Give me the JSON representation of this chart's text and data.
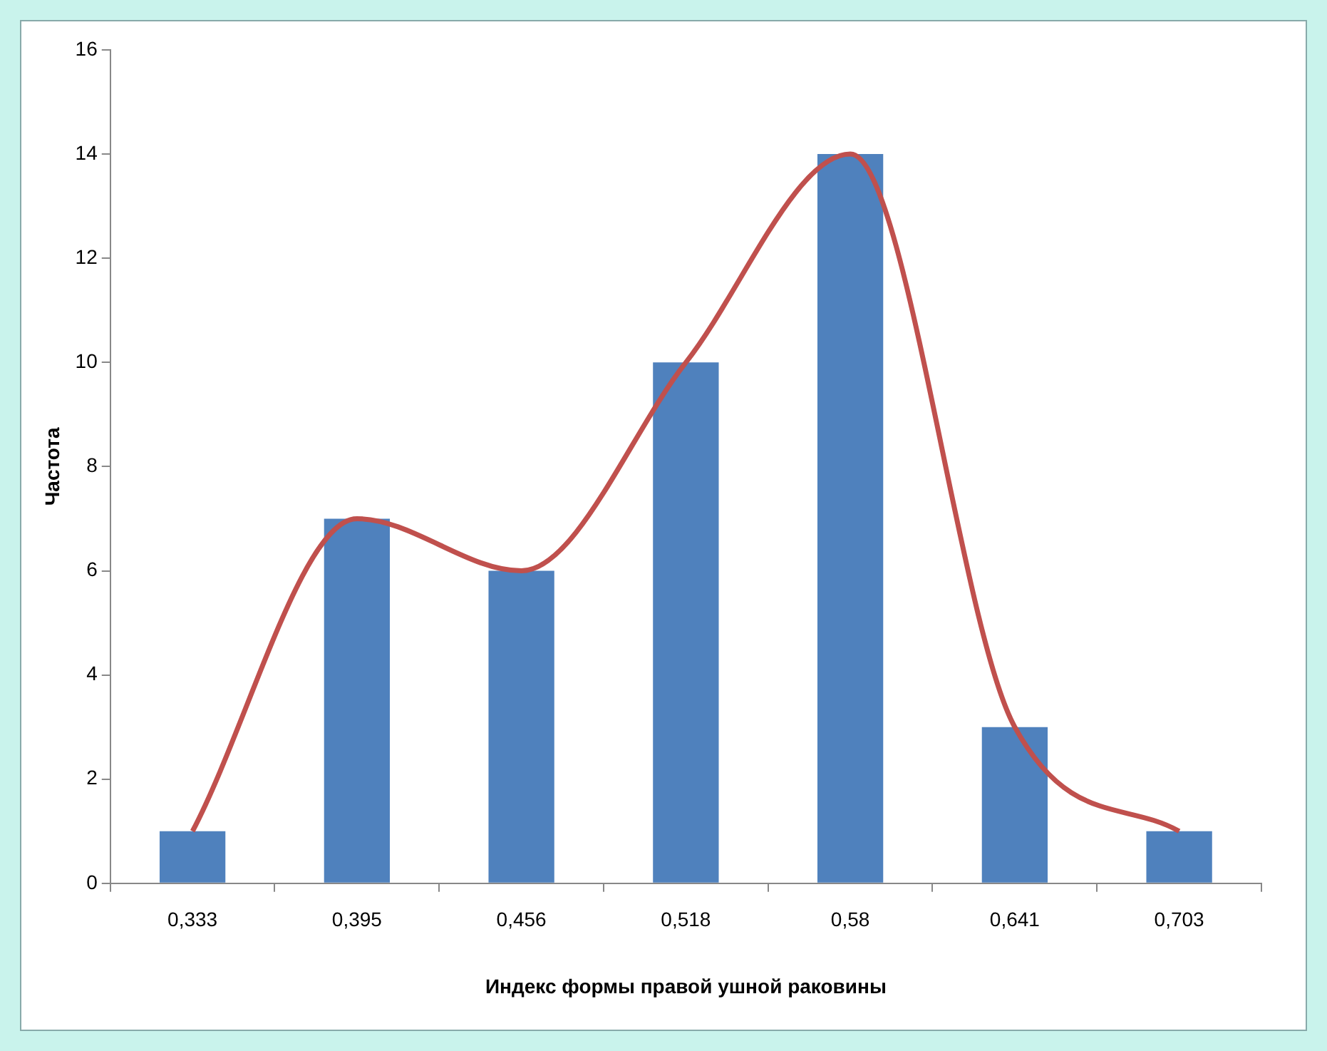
{
  "chart_data": {
    "type": "bar",
    "xlabel": "Индекс формы правой ушной раковины",
    "ylabel": "Частота",
    "categories": [
      "0,333",
      "0,395",
      "0,456",
      "0,518",
      "0,58",
      "0,641",
      "0,703"
    ],
    "series": [
      {
        "color": "#4f81bd",
        "values": [
          1,
          7,
          6,
          10,
          14,
          3,
          1
        ]
      },
      {
        "type": "line",
        "color": "#c0504d",
        "values": [
          1,
          7,
          6,
          10,
          14,
          3,
          1
        ],
        "marker": "none",
        "line_style": "solid"
      }
    ],
    "ylim": [
      0,
      16
    ],
    "yticks": [
      0,
      2,
      4,
      6,
      8,
      10,
      12,
      14,
      16
    ],
    "grid": false,
    "legend": false
  }
}
